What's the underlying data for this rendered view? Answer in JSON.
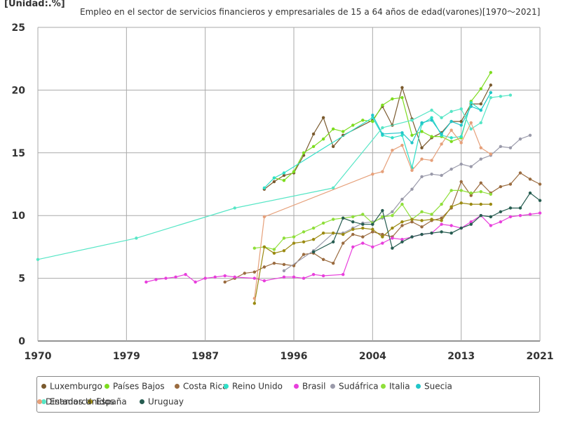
{
  "unit_label": "[Unidad:.%]",
  "chart_data": {
    "type": "line",
    "title": "Empleo en el sector de servicios financieros y empresariales de 15 a 64 años de edad(varones)[1970〜2021]",
    "xlabel": "",
    "ylabel": "",
    "xlim": [
      1970,
      2021
    ],
    "ylim": [
      0,
      25
    ],
    "x_ticks": [
      "1970",
      "1979",
      "1987",
      "1996",
      "2004",
      "2013",
      "2021"
    ],
    "y_ticks": [
      "0",
      "5",
      "10",
      "15",
      "20",
      "25"
    ],
    "grid": true,
    "legend_position": "bottom",
    "series": [
      {
        "name": "Luxemburgo",
        "color": "#7a5a2e",
        "points": [
          [
            1993,
            12.1
          ],
          [
            1994,
            12.7
          ],
          [
            1995,
            13.2
          ],
          [
            1996,
            13.4
          ],
          [
            1997,
            14.8
          ],
          [
            1998,
            16.5
          ],
          [
            1999,
            17.8
          ],
          [
            2000,
            15.5
          ],
          [
            2001,
            16.4
          ],
          [
            2004,
            17.6
          ],
          [
            2005,
            18.7
          ],
          [
            2006,
            17.2
          ],
          [
            2007,
            20.2
          ],
          [
            2008,
            17.7
          ],
          [
            2009,
            15.4
          ],
          [
            2010,
            16.2
          ],
          [
            2011,
            16.6
          ],
          [
            2012,
            17.5
          ],
          [
            2013,
            17.5
          ],
          [
            2014,
            18.9
          ],
          [
            2015,
            18.9
          ],
          [
            2016,
            20.4
          ]
        ]
      },
      {
        "name": "Países Bajos",
        "color": "#7ddc1f",
        "points": [
          [
            1994,
            13.0
          ],
          [
            1995,
            12.8
          ],
          [
            1996,
            13.5
          ],
          [
            1997,
            15.0
          ],
          [
            1998,
            15.5
          ],
          [
            1999,
            16.1
          ],
          [
            2000,
            16.9
          ],
          [
            2001,
            16.7
          ],
          [
            2002,
            17.2
          ],
          [
            2003,
            17.6
          ],
          [
            2004,
            17.5
          ],
          [
            2005,
            18.8
          ],
          [
            2006,
            19.3
          ],
          [
            2007,
            19.4
          ],
          [
            2008,
            16.4
          ],
          [
            2009,
            16.7
          ],
          [
            2010,
            16.3
          ],
          [
            2011,
            16.3
          ],
          [
            2012,
            15.9
          ],
          [
            2013,
            16.2
          ],
          [
            2014,
            19.1
          ],
          [
            2015,
            20.1
          ],
          [
            2016,
            21.4
          ]
        ]
      },
      {
        "name": "Costa Rica",
        "color": "#9a6b3f",
        "points": [
          [
            1989,
            4.7
          ],
          [
            1990,
            5.0
          ],
          [
            1991,
            5.4
          ],
          [
            1992,
            5.5
          ],
          [
            1993,
            5.9
          ],
          [
            1994,
            6.2
          ],
          [
            1995,
            6.1
          ],
          [
            1996,
            6.0
          ],
          [
            1997,
            6.9
          ],
          [
            1998,
            7.0
          ],
          [
            1999,
            6.5
          ],
          [
            2000,
            6.2
          ],
          [
            2001,
            7.8
          ],
          [
            2002,
            8.5
          ],
          [
            2003,
            8.3
          ],
          [
            2004,
            8.7
          ],
          [
            2005,
            8.5
          ],
          [
            2006,
            8.3
          ],
          [
            2007,
            9.2
          ],
          [
            2008,
            9.5
          ],
          [
            2009,
            9.1
          ],
          [
            2010,
            9.6
          ],
          [
            2011,
            9.8
          ],
          [
            2012,
            10.6
          ],
          [
            2013,
            12.7
          ],
          [
            2014,
            11.6
          ],
          [
            2015,
            12.6
          ],
          [
            2016,
            11.8
          ],
          [
            2017,
            12.3
          ],
          [
            2018,
            12.5
          ],
          [
            2019,
            13.4
          ],
          [
            2020,
            12.9
          ],
          [
            2021,
            12.5
          ]
        ]
      },
      {
        "name": "Reino Unido",
        "color": "#2fe0c8",
        "points": [
          [
            1993,
            12.2
          ],
          [
            1994,
            13.0
          ],
          [
            1995,
            13.4
          ],
          [
            2004,
            17.8
          ],
          [
            2005,
            16.4
          ],
          [
            2006,
            16.2
          ],
          [
            2007,
            16.4
          ],
          [
            2008,
            13.8
          ],
          [
            2009,
            17.3
          ],
          [
            2010,
            17.8
          ],
          [
            2011,
            16.4
          ],
          [
            2012,
            16.2
          ],
          [
            2013,
            16.3
          ],
          [
            2014,
            19.0
          ],
          [
            2015,
            18.4
          ],
          [
            2016,
            19.8
          ]
        ]
      },
      {
        "name": "Brasil",
        "color": "#e83fdc",
        "points": [
          [
            1981,
            4.7
          ],
          [
            1982,
            4.9
          ],
          [
            1983,
            5.0
          ],
          [
            1984,
            5.1
          ],
          [
            1985,
            5.3
          ],
          [
            1986,
            4.7
          ],
          [
            1987,
            5.0
          ],
          [
            1988,
            5.1
          ],
          [
            1989,
            5.2
          ],
          [
            1990,
            5.1
          ],
          [
            1992,
            5.0
          ],
          [
            1993,
            4.8
          ],
          [
            1995,
            5.1
          ],
          [
            1996,
            5.1
          ],
          [
            1997,
            5.0
          ],
          [
            1998,
            5.3
          ],
          [
            1999,
            5.2
          ],
          [
            2001,
            5.3
          ],
          [
            2002,
            7.5
          ],
          [
            2003,
            7.8
          ],
          [
            2004,
            7.5
          ],
          [
            2005,
            7.8
          ],
          [
            2006,
            8.2
          ],
          [
            2007,
            8.1
          ],
          [
            2008,
            8.3
          ],
          [
            2009,
            8.5
          ],
          [
            2010,
            8.6
          ],
          [
            2011,
            9.3
          ],
          [
            2012,
            9.2
          ],
          [
            2013,
            9.0
          ],
          [
            2014,
            9.5
          ],
          [
            2015,
            10.0
          ],
          [
            2016,
            9.2
          ],
          [
            2017,
            9.5
          ],
          [
            2018,
            9.9
          ],
          [
            2019,
            10.0
          ],
          [
            2020,
            10.1
          ],
          [
            2021,
            10.2
          ]
        ]
      },
      {
        "name": "Sudáfrica",
        "color": "#9a9aaa",
        "points": [
          [
            1995,
            5.6
          ],
          [
            1998,
            7.2
          ],
          [
            2000,
            8.6
          ],
          [
            2001,
            8.6
          ],
          [
            2002,
            9.0
          ],
          [
            2003,
            9.4
          ],
          [
            2004,
            9.5
          ],
          [
            2005,
            9.8
          ],
          [
            2006,
            10.3
          ],
          [
            2007,
            11.3
          ],
          [
            2008,
            12.1
          ],
          [
            2009,
            13.1
          ],
          [
            2010,
            13.3
          ],
          [
            2011,
            13.2
          ],
          [
            2012,
            13.7
          ],
          [
            2013,
            14.1
          ],
          [
            2014,
            13.9
          ],
          [
            2015,
            14.5
          ],
          [
            2016,
            14.8
          ],
          [
            2017,
            15.5
          ],
          [
            2018,
            15.4
          ],
          [
            2019,
            16.1
          ],
          [
            2020,
            16.4
          ]
        ]
      },
      {
        "name": "Italia",
        "color": "#8fdf3a",
        "points": [
          [
            1992,
            7.4
          ],
          [
            1993,
            7.5
          ],
          [
            1994,
            7.3
          ],
          [
            1995,
            8.2
          ],
          [
            1996,
            8.3
          ],
          [
            1997,
            8.7
          ],
          [
            1998,
            9.0
          ],
          [
            1999,
            9.4
          ],
          [
            2000,
            9.7
          ],
          [
            2001,
            9.8
          ],
          [
            2002,
            9.9
          ],
          [
            2003,
            10.1
          ],
          [
            2004,
            9.4
          ],
          [
            2005,
            9.9
          ],
          [
            2006,
            10.0
          ],
          [
            2007,
            10.9
          ],
          [
            2008,
            9.7
          ],
          [
            2009,
            10.3
          ],
          [
            2010,
            10.1
          ],
          [
            2011,
            10.9
          ],
          [
            2012,
            12.0
          ],
          [
            2013,
            12.0
          ],
          [
            2014,
            11.8
          ],
          [
            2015,
            11.9
          ],
          [
            2016,
            11.7
          ]
        ]
      },
      {
        "name": "Suecia",
        "color": "#21c6c9",
        "points": [
          [
            2004,
            18.0
          ],
          [
            2005,
            16.5
          ],
          [
            2007,
            16.6
          ],
          [
            2008,
            15.8
          ],
          [
            2009,
            17.4
          ],
          [
            2010,
            17.6
          ],
          [
            2011,
            16.5
          ],
          [
            2012,
            17.5
          ],
          [
            2013,
            17.2
          ],
          [
            2014,
            18.7
          ],
          [
            2015,
            18.4
          ],
          [
            2016,
            19.8
          ]
        ]
      },
      {
        "name": "Estados Unidos",
        "color": "#57e6c6",
        "points": [
          [
            1970,
            6.5
          ],
          [
            1980,
            8.2
          ],
          [
            1990,
            10.6
          ],
          [
            2000,
            12.2
          ],
          [
            2005,
            17.0
          ],
          [
            2008,
            17.6
          ],
          [
            2010,
            18.4
          ],
          [
            2011,
            17.8
          ],
          [
            2012,
            18.3
          ],
          [
            2013,
            18.5
          ],
          [
            2014,
            16.9
          ],
          [
            2015,
            17.4
          ],
          [
            2016,
            19.4
          ],
          [
            2017,
            19.5
          ],
          [
            2018,
            19.6
          ]
        ]
      },
      {
        "name": "España",
        "color": "#9b8a12",
        "points": [
          [
            1992,
            3.0
          ],
          [
            1993,
            7.5
          ],
          [
            1994,
            7.0
          ],
          [
            1995,
            7.2
          ],
          [
            1996,
            7.8
          ],
          [
            1997,
            7.9
          ],
          [
            1998,
            8.1
          ],
          [
            1999,
            8.6
          ],
          [
            2000,
            8.6
          ],
          [
            2001,
            8.5
          ],
          [
            2002,
            8.9
          ],
          [
            2003,
            9.0
          ],
          [
            2004,
            8.9
          ],
          [
            2005,
            8.3
          ],
          [
            2006,
            9.0
          ],
          [
            2007,
            9.5
          ],
          [
            2008,
            9.7
          ],
          [
            2009,
            9.6
          ],
          [
            2010,
            9.7
          ],
          [
            2011,
            9.6
          ],
          [
            2012,
            10.7
          ],
          [
            2013,
            11.0
          ],
          [
            2014,
            10.9
          ],
          [
            2015,
            10.9
          ],
          [
            2016,
            10.9
          ]
        ]
      },
      {
        "name": "Uruguay",
        "color": "#265c50",
        "points": [
          [
            1998,
            7.1
          ],
          [
            2000,
            7.9
          ],
          [
            2001,
            9.8
          ],
          [
            2002,
            9.5
          ],
          [
            2003,
            9.3
          ],
          [
            2004,
            9.3
          ],
          [
            2005,
            10.4
          ],
          [
            2006,
            7.4
          ],
          [
            2007,
            7.9
          ],
          [
            2008,
            8.3
          ],
          [
            2009,
            8.5
          ],
          [
            2010,
            8.6
          ],
          [
            2011,
            8.7
          ],
          [
            2012,
            8.6
          ],
          [
            2013,
            9.0
          ],
          [
            2014,
            9.3
          ],
          [
            2015,
            10.0
          ],
          [
            2016,
            9.9
          ],
          [
            2017,
            10.3
          ],
          [
            2018,
            10.6
          ],
          [
            2019,
            10.6
          ],
          [
            2020,
            11.8
          ],
          [
            2021,
            11.2
          ]
        ]
      },
      {
        "name": "Dinamarca",
        "color": "#e6a07a",
        "points": [
          [
            1992,
            3.4
          ],
          [
            1993,
            9.9
          ],
          [
            2004,
            13.3
          ],
          [
            2005,
            13.5
          ],
          [
            2006,
            15.2
          ],
          [
            2007,
            15.6
          ],
          [
            2008,
            13.6
          ],
          [
            2009,
            14.5
          ],
          [
            2010,
            14.4
          ],
          [
            2011,
            15.7
          ],
          [
            2012,
            16.8
          ],
          [
            2013,
            15.8
          ],
          [
            2014,
            17.4
          ],
          [
            2015,
            15.4
          ],
          [
            2016,
            14.9
          ]
        ]
      }
    ]
  }
}
